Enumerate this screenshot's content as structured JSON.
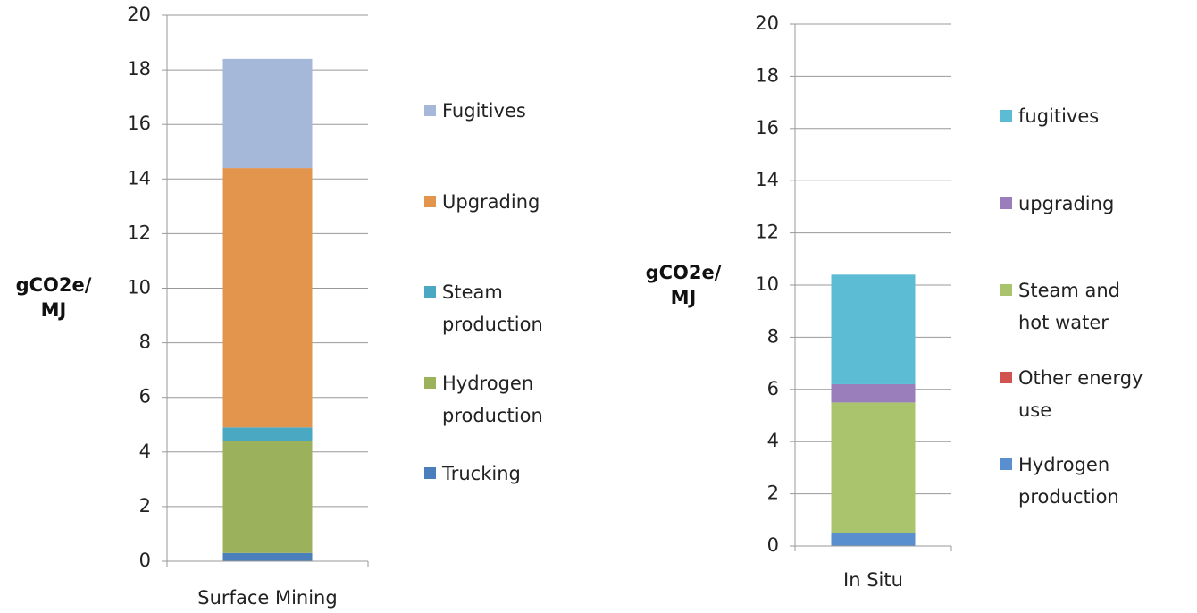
{
  "chart_data": [
    {
      "type": "bar",
      "stacked": true,
      "y_label": "gCO2e/ MJ",
      "categories": [
        "Surface Mining"
      ],
      "series": [
        {
          "name": "Trucking",
          "color": "#4a7fbc",
          "values": [
            0.3
          ]
        },
        {
          "name": "Hydrogen production",
          "color": "#9bb15c",
          "values": [
            4.1
          ]
        },
        {
          "name": "Steam production",
          "color": "#4aa8c2",
          "values": [
            0.5
          ]
        },
        {
          "name": "Upgrading",
          "color": "#e4954d",
          "values": [
            9.5
          ]
        },
        {
          "name": "Fugitives",
          "color": "#a5b8d9",
          "values": [
            4.0
          ]
        }
      ],
      "ylim": [
        0,
        20
      ],
      "yticks": [
        0,
        2,
        4,
        6,
        8,
        10,
        12,
        14,
        16,
        18,
        20
      ],
      "grid": true
    },
    {
      "type": "bar",
      "stacked": true,
      "y_label": "gCO2e/ MJ",
      "categories": [
        "In Situ"
      ],
      "series": [
        {
          "name": "Hydrogen production",
          "color": "#5a8fcf",
          "values": [
            0.5
          ]
        },
        {
          "name": "Other energy use",
          "color": "#d0534f",
          "values": [
            0
          ]
        },
        {
          "name": "Steam and hot water",
          "color": "#a9c46c",
          "values": [
            5.0
          ]
        },
        {
          "name": "upgrading",
          "color": "#9a7dbb",
          "values": [
            0.7
          ]
        },
        {
          "name": "fugitives",
          "color": "#5bbcd4",
          "values": [
            4.2
          ]
        }
      ],
      "ylim": [
        0,
        20
      ],
      "yticks": [
        0,
        2,
        4,
        6,
        8,
        10,
        12,
        14,
        16,
        18,
        20
      ],
      "grid": true
    }
  ]
}
